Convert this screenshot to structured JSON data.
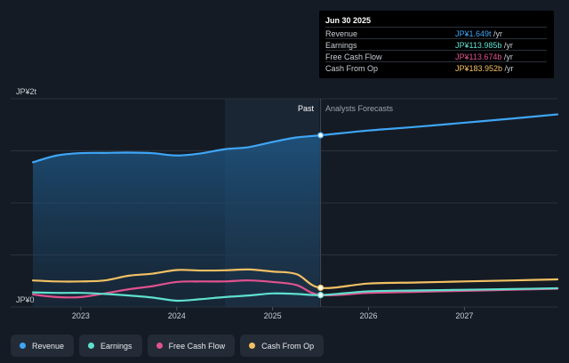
{
  "tooltip": {
    "date": "Jun 30 2025",
    "rows": [
      {
        "name": "Revenue",
        "value": "JP¥1.649t",
        "unit": " /yr",
        "color": "#3ea6f5"
      },
      {
        "name": "Earnings",
        "value": "JP¥113.985b",
        "unit": " /yr",
        "color": "#5fe0cf"
      },
      {
        "name": "Free Cash Flow",
        "value": "JP¥113.674b",
        "unit": " /yr",
        "color": "#e0528e"
      },
      {
        "name": "Cash From Op",
        "value": "JP¥183.952b",
        "unit": " /yr",
        "color": "#f2c063"
      }
    ]
  },
  "legend": [
    {
      "label": "Revenue",
      "color": "#3ea6f5"
    },
    {
      "label": "Earnings",
      "color": "#5fe0cf"
    },
    {
      "label": "Free Cash Flow",
      "color": "#e0528e"
    },
    {
      "label": "Cash From Op",
      "color": "#f2c063"
    }
  ],
  "chart_data": {
    "type": "line",
    "y_top_label": "JP¥2t",
    "y_bottom_label": "JP¥0",
    "past_label": "Past",
    "forecast_label": "Analysts Forecasts",
    "divider_x": 2025.5,
    "xlim": [
      2022.5,
      2027.97
    ],
    "ylim": [
      0,
      2000
    ],
    "x_ticks": [
      2023,
      2024,
      2025,
      2026,
      2027
    ],
    "x_tick_labels": [
      "2023",
      "2024",
      "2025",
      "2026",
      "2027"
    ],
    "series": [
      {
        "name": "Revenue",
        "color": "#3ea6f5",
        "area": true,
        "x": [
          2022.5,
          2022.75,
          2023.0,
          2023.25,
          2023.5,
          2023.75,
          2024.0,
          2024.25,
          2024.5,
          2024.75,
          2025.0,
          2025.25,
          2025.5,
          2026.0,
          2026.5,
          2027.0,
          2027.5,
          2027.97
        ],
        "y": [
          1390,
          1455,
          1478,
          1480,
          1483,
          1477,
          1455,
          1475,
          1515,
          1535,
          1585,
          1628,
          1649,
          1695,
          1730,
          1770,
          1810,
          1850
        ]
      },
      {
        "name": "Cash From Op",
        "color": "#f2c063",
        "x": [
          2022.5,
          2022.75,
          2023.0,
          2023.25,
          2023.5,
          2023.75,
          2024.0,
          2024.25,
          2024.5,
          2024.75,
          2025.0,
          2025.25,
          2025.5,
          2026.0,
          2026.5,
          2027.0,
          2027.5,
          2027.97
        ],
        "y": [
          255,
          245,
          245,
          255,
          300,
          320,
          355,
          350,
          352,
          360,
          340,
          315,
          184,
          225,
          235,
          245,
          255,
          265
        ]
      },
      {
        "name": "Free Cash Flow",
        "color": "#e0528e",
        "x": [
          2022.5,
          2022.75,
          2023.0,
          2023.25,
          2023.5,
          2023.75,
          2024.0,
          2024.25,
          2024.5,
          2024.75,
          2025.0,
          2025.25,
          2025.5,
          2026.0,
          2026.5,
          2027.0,
          2027.5,
          2027.97
        ],
        "y": [
          120,
          95,
          95,
          130,
          170,
          200,
          240,
          245,
          245,
          255,
          240,
          210,
          114,
          135,
          145,
          155,
          165,
          175
        ]
      },
      {
        "name": "Earnings",
        "color": "#5fe0cf",
        "x": [
          2022.5,
          2022.75,
          2023.0,
          2023.25,
          2023.5,
          2023.75,
          2024.0,
          2024.25,
          2024.5,
          2024.75,
          2025.0,
          2025.25,
          2025.5,
          2026.0,
          2026.5,
          2027.0,
          2027.5,
          2027.97
        ],
        "y": [
          140,
          135,
          135,
          125,
          110,
          90,
          60,
          75,
          95,
          110,
          130,
          125,
          114,
          150,
          158,
          165,
          172,
          180
        ]
      }
    ]
  }
}
